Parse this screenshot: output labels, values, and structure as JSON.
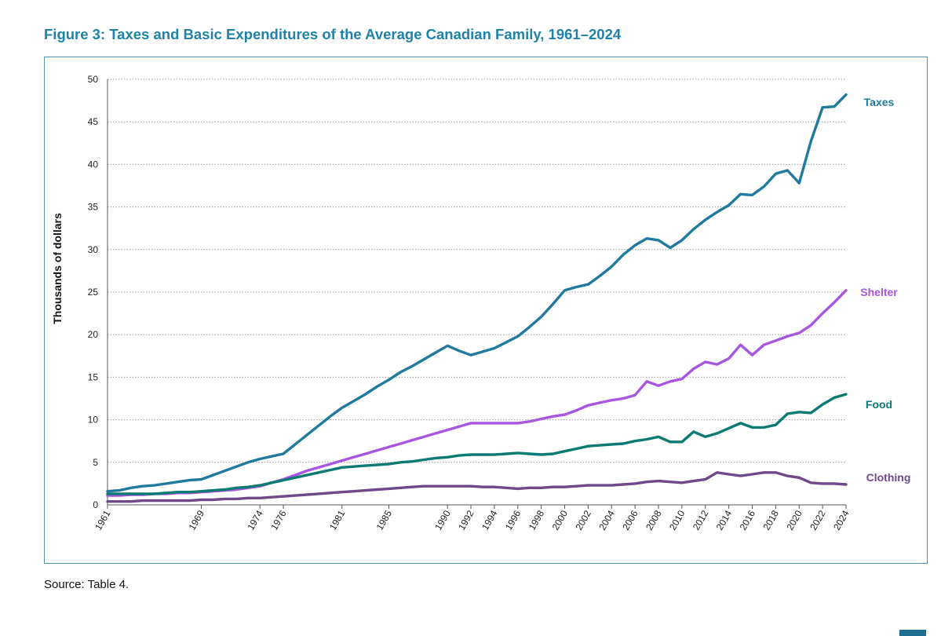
{
  "figure_title": "Figure 3: Taxes and Basic Expenditures of the Average Canadian Family, 1961–2024",
  "source_note": "Source: Table 4.",
  "chart_data": {
    "type": "line",
    "title": "Figure 3: Taxes and Basic Expenditures of the Average Canadian Family, 1961–2024",
    "xlabel": "",
    "ylabel": "Thousands of dollars",
    "ylim": [
      0,
      50
    ],
    "yticks": [
      0,
      5,
      10,
      15,
      20,
      25,
      30,
      35,
      40,
      45,
      50
    ],
    "xlim": [
      1961,
      2024
    ],
    "xticks": [
      1961,
      1969,
      1974,
      1976,
      1981,
      1985,
      1990,
      1992,
      1994,
      1996,
      1998,
      2000,
      2002,
      2004,
      2006,
      2008,
      2010,
      2012,
      2014,
      2016,
      2018,
      2020,
      2022,
      2024
    ],
    "grid": "horizontal dotted",
    "legend": "labels at right end of each line",
    "x": [
      1961,
      1962,
      1963,
      1964,
      1965,
      1966,
      1967,
      1968,
      1969,
      1970,
      1971,
      1972,
      1973,
      1974,
      1975,
      1976,
      1977,
      1978,
      1979,
      1980,
      1981,
      1982,
      1983,
      1984,
      1985,
      1986,
      1987,
      1988,
      1989,
      1990,
      1991,
      1992,
      1993,
      1994,
      1995,
      1996,
      1997,
      1998,
      1999,
      2000,
      2001,
      2002,
      2003,
      2004,
      2005,
      2006,
      2007,
      2008,
      2009,
      2010,
      2011,
      2012,
      2013,
      2014,
      2015,
      2016,
      2017,
      2018,
      2019,
      2020,
      2021,
      2022,
      2023,
      2024
    ],
    "series": [
      {
        "name": "Taxes",
        "color": "#1f7a9e",
        "values": [
          1.6,
          1.7,
          2.0,
          2.2,
          2.3,
          2.5,
          2.7,
          2.9,
          3.0,
          3.5,
          4.0,
          4.5,
          5.0,
          5.4,
          5.7,
          6.0,
          7.1,
          8.2,
          9.3,
          10.4,
          11.4,
          12.2,
          13.0,
          13.9,
          14.7,
          15.6,
          16.3,
          17.1,
          17.9,
          18.7,
          18.1,
          17.6,
          18.0,
          18.4,
          19.1,
          19.8,
          20.9,
          22.1,
          23.6,
          25.2,
          25.6,
          25.9,
          26.9,
          28.0,
          29.4,
          30.5,
          31.3,
          31.1,
          30.2,
          31.1,
          32.4,
          33.5,
          34.4,
          35.2,
          36.5,
          36.4,
          37.4,
          38.9,
          39.3,
          37.8,
          42.7,
          46.7,
          46.8,
          48.2
        ]
      },
      {
        "name": "Shelter",
        "color": "#a855e0",
        "values": [
          1.1,
          1.1,
          1.2,
          1.2,
          1.3,
          1.3,
          1.4,
          1.4,
          1.5,
          1.6,
          1.7,
          1.8,
          2.0,
          2.2,
          2.6,
          3.0,
          3.5,
          4.0,
          4.4,
          4.8,
          5.2,
          5.6,
          6.0,
          6.4,
          6.8,
          7.2,
          7.6,
          8.0,
          8.4,
          8.8,
          9.2,
          9.6,
          9.6,
          9.6,
          9.6,
          9.6,
          9.8,
          10.1,
          10.4,
          10.6,
          11.1,
          11.7,
          12.0,
          12.3,
          12.5,
          12.9,
          14.5,
          14.0,
          14.5,
          14.8,
          16.0,
          16.8,
          16.5,
          17.2,
          18.8,
          17.6,
          18.8,
          19.3,
          19.8,
          20.2,
          21.1,
          22.5,
          23.8,
          25.2
        ]
      },
      {
        "name": "Food",
        "color": "#0a7a72",
        "values": [
          1.3,
          1.3,
          1.3,
          1.3,
          1.3,
          1.4,
          1.5,
          1.5,
          1.6,
          1.7,
          1.8,
          2.0,
          2.1,
          2.3,
          2.6,
          2.9,
          3.2,
          3.5,
          3.8,
          4.1,
          4.4,
          4.5,
          4.6,
          4.7,
          4.8,
          5.0,
          5.1,
          5.3,
          5.5,
          5.6,
          5.8,
          5.9,
          5.9,
          5.9,
          6.0,
          6.1,
          6.0,
          5.9,
          6.0,
          6.3,
          6.6,
          6.9,
          7.0,
          7.1,
          7.2,
          7.5,
          7.7,
          8.0,
          7.4,
          7.4,
          8.6,
          8.0,
          8.4,
          9.0,
          9.6,
          9.1,
          9.1,
          9.4,
          10.7,
          10.9,
          10.8,
          11.8,
          12.6,
          13.0
        ]
      },
      {
        "name": "Clothing",
        "color": "#6e4a8a",
        "values": [
          0.4,
          0.4,
          0.4,
          0.5,
          0.5,
          0.5,
          0.5,
          0.5,
          0.6,
          0.6,
          0.7,
          0.7,
          0.8,
          0.8,
          0.9,
          1.0,
          1.1,
          1.2,
          1.3,
          1.4,
          1.5,
          1.6,
          1.7,
          1.8,
          1.9,
          2.0,
          2.1,
          2.2,
          2.2,
          2.2,
          2.2,
          2.2,
          2.1,
          2.1,
          2.0,
          1.9,
          2.0,
          2.0,
          2.1,
          2.1,
          2.2,
          2.3,
          2.3,
          2.3,
          2.4,
          2.5,
          2.7,
          2.8,
          2.7,
          2.6,
          2.8,
          3.0,
          3.8,
          3.6,
          3.4,
          3.6,
          3.8,
          3.8,
          3.4,
          3.2,
          2.6,
          2.5,
          2.5,
          2.4
        ]
      }
    ]
  }
}
